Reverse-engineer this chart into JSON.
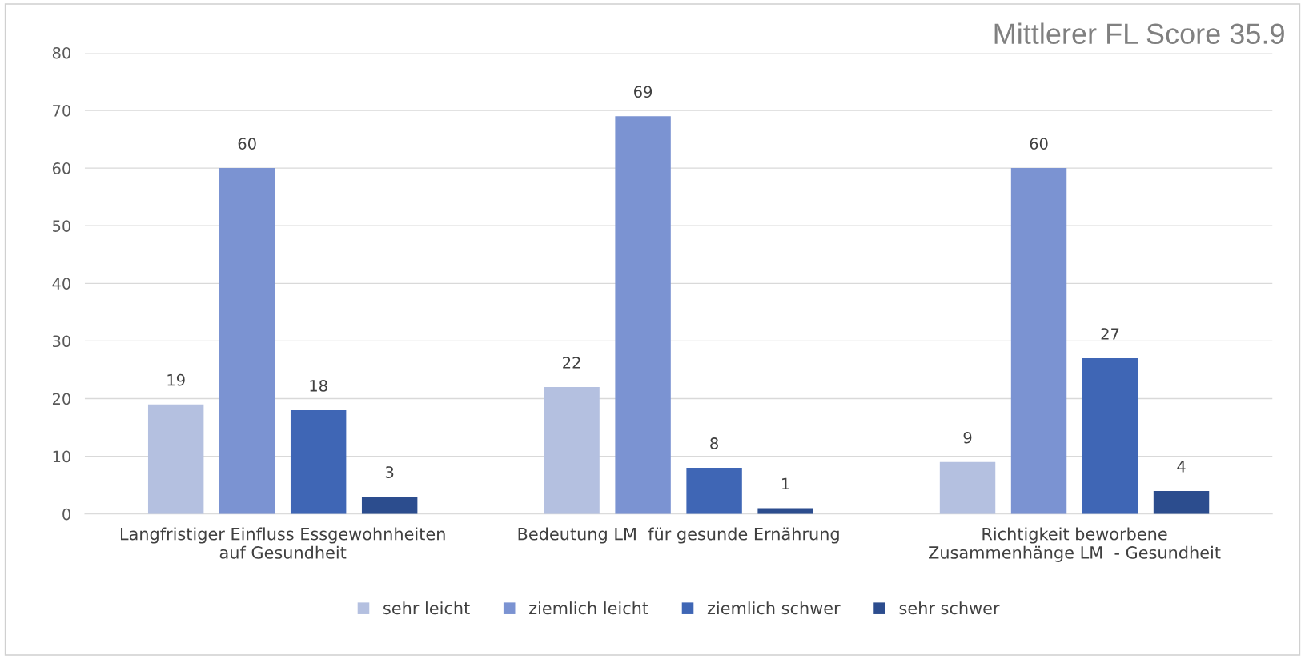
{
  "chart_data": {
    "type": "bar",
    "title": "Mittlerer FL Score 35.9",
    "categories": [
      "Langfristiger Einfluss Essgewohnheiten\nauf Gesundheit",
      "Bedeutung LM  für gesunde Ernährung",
      "Richtigkeit beworbene\nZusammenhänge LM  - Gesundheit"
    ],
    "series": [
      {
        "name": "sehr leicht",
        "color": "#b4c0e0",
        "values": [
          19,
          22,
          9
        ]
      },
      {
        "name": "ziemlich leicht",
        "color": "#7b93d2",
        "values": [
          60,
          69,
          60
        ]
      },
      {
        "name": "ziemlich schwer",
        "color": "#3f66b5",
        "values": [
          18,
          8,
          27
        ]
      },
      {
        "name": "sehr schwer",
        "color": "#2c4d8e",
        "values": [
          3,
          1,
          4
        ]
      }
    ],
    "ylim": [
      0,
      80
    ],
    "yticks": [
      0,
      10,
      20,
      30,
      40,
      50,
      60,
      70,
      80
    ],
    "grid": "y",
    "legend": "bottom",
    "data_labels": true
  }
}
